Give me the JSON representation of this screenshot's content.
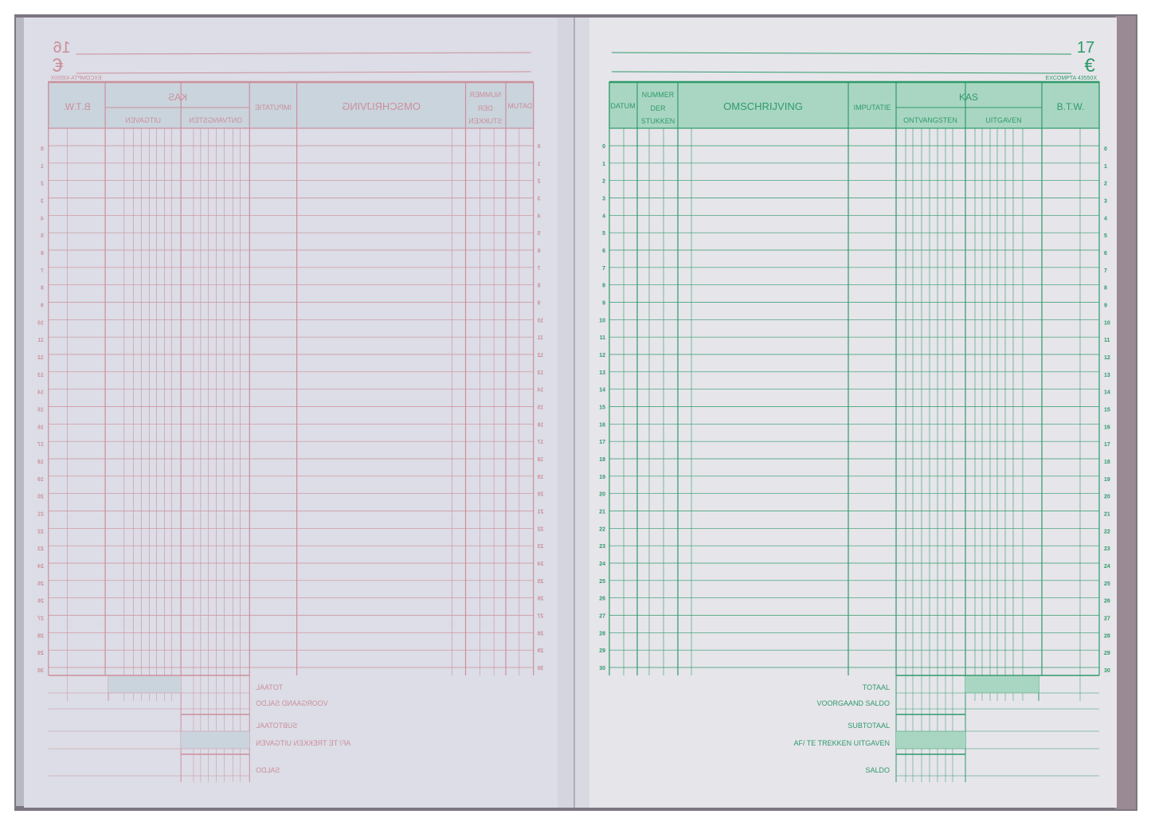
{
  "left_page": {
    "page_number": "16",
    "product_code": "EXCOMPTA 43550X",
    "ink_color": "#c9828f",
    "note": ""
  },
  "right_page": {
    "page_number": "17",
    "currency_symbol": "€",
    "product_code": "EXCOMPTA 43550X",
    "ink_color": "#2f9a6a",
    "header_fill": "#a9d6c2",
    "columns": {
      "datum": "DATUM",
      "nummer": [
        "NUMMER",
        "DER",
        "STUKKEN"
      ],
      "omschrijving": "OMSCHRIJVING",
      "imputatie": "IMPUTATIE",
      "kas": "KAS",
      "ontvangsten": "ONTVANGSTEN",
      "uitgaven": "UITGAVEN",
      "btw": "B.T.W."
    },
    "row_numbers": [
      "0",
      "1",
      "2",
      "3",
      "4",
      "5",
      "6",
      "7",
      "8",
      "9",
      "10",
      "11",
      "12",
      "13",
      "14",
      "15",
      "16",
      "17",
      "18",
      "19",
      "20",
      "21",
      "22",
      "23",
      "24",
      "25",
      "26",
      "27",
      "28",
      "29",
      "30"
    ],
    "summary_labels": {
      "totaal": "TOTAAL",
      "voorgaand_saldo": "VOORGAAND SALDO",
      "subtotaal": "SUBTOTAAL",
      "af_te_trekken": "AF/ TE TREKKEN UITGAVEN",
      "saldo": "SALDO"
    }
  }
}
